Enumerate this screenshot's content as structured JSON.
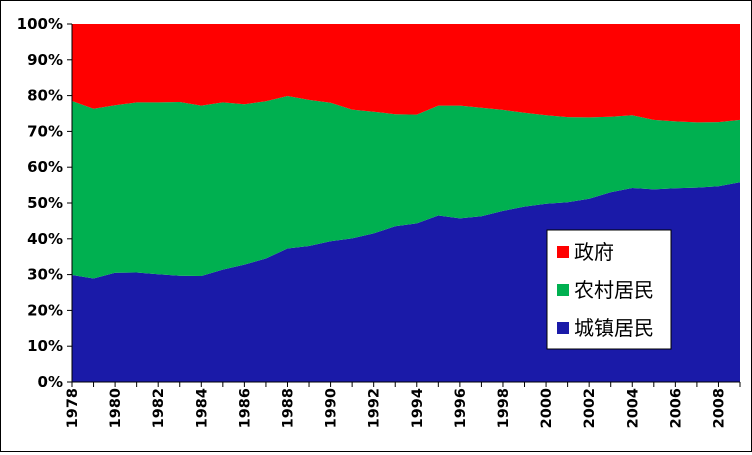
{
  "chart_data": {
    "type": "area",
    "stacked": true,
    "normalized": true,
    "x": [
      1978,
      1979,
      1980,
      1981,
      1982,
      1983,
      1984,
      1985,
      1986,
      1987,
      1988,
      1989,
      1990,
      1991,
      1992,
      1993,
      1994,
      1995,
      1996,
      1997,
      1998,
      1999,
      2000,
      2001,
      2002,
      2003,
      2004,
      2005,
      2006,
      2007,
      2008,
      2009
    ],
    "x_tick_labels": [
      "1978",
      "1980",
      "1982",
      "1984",
      "1986",
      "1988",
      "1990",
      "1992",
      "1994",
      "1996",
      "1998",
      "2000",
      "2002",
      "2004",
      "2006",
      "2008"
    ],
    "y_tick_labels": [
      "0%",
      "10%",
      "20%",
      "30%",
      "40%",
      "50%",
      "60%",
      "70%",
      "80%",
      "90%",
      "100%"
    ],
    "ylim": [
      0,
      100
    ],
    "grid": false,
    "legend_position": "right",
    "series": [
      {
        "name": "城镇居民",
        "color": "#1a1aa8",
        "values": [
          29.9,
          28.9,
          30.5,
          30.6,
          30.1,
          29.7,
          29.6,
          31.4,
          32.8,
          34.5,
          37.3,
          38.0,
          39.3,
          40.1,
          41.5,
          43.5,
          44.3,
          46.5,
          45.7,
          46.3,
          47.8,
          49.0,
          49.8,
          50.2,
          51.2,
          53.0,
          54.2,
          53.8,
          54.1,
          54.3,
          54.7,
          55.8
        ]
      },
      {
        "name": "农村居民",
        "color": "#00b050",
        "values": [
          48.6,
          47.4,
          46.8,
          47.5,
          48.0,
          48.5,
          47.6,
          46.7,
          44.8,
          43.9,
          42.6,
          40.8,
          38.7,
          36.0,
          34.0,
          31.3,
          30.4,
          30.7,
          31.5,
          30.3,
          28.2,
          26.2,
          24.7,
          23.8,
          22.7,
          21.1,
          20.3,
          19.4,
          18.7,
          18.2,
          17.9,
          17.4
        ]
      },
      {
        "name": "政府",
        "color": "#ff0000",
        "values": [
          21.5,
          23.7,
          22.7,
          21.9,
          21.9,
          21.8,
          22.8,
          21.9,
          22.4,
          21.6,
          20.1,
          21.2,
          22.0,
          23.9,
          24.5,
          25.2,
          25.3,
          22.8,
          22.8,
          23.4,
          24.0,
          24.8,
          25.5,
          26.0,
          26.1,
          25.9,
          25.5,
          26.8,
          27.2,
          27.5,
          27.4,
          26.8
        ]
      }
    ]
  }
}
